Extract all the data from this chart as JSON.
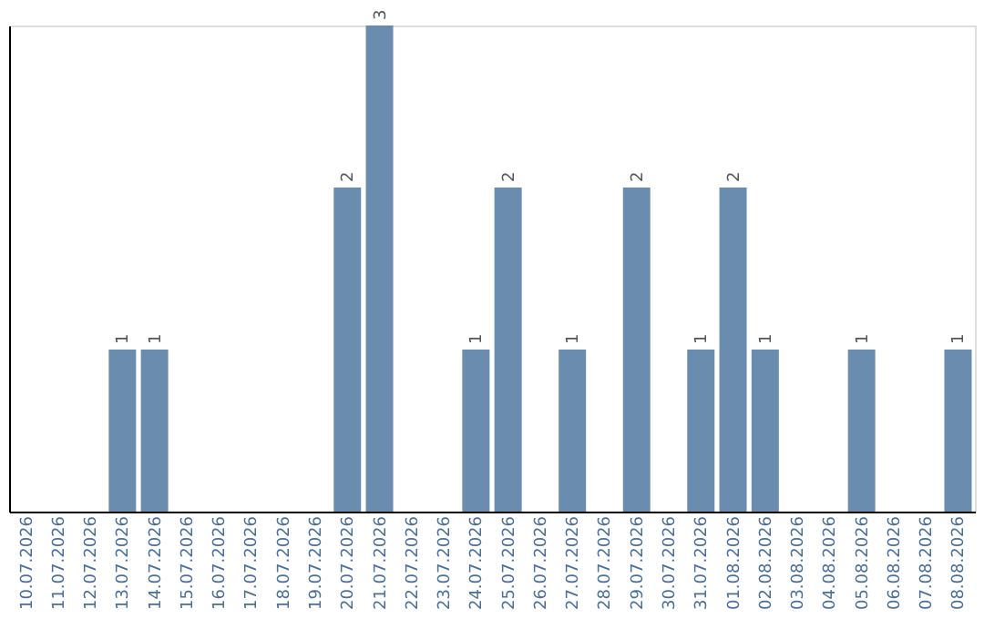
{
  "chart_data": {
    "type": "bar",
    "categories": [
      "10.07.2026",
      "11.07.2026",
      "12.07.2026",
      "13.07.2026",
      "14.07.2026",
      "15.07.2026",
      "16.07.2026",
      "17.07.2026",
      "18.07.2026",
      "19.07.2026",
      "20.07.2026",
      "21.07.2026",
      "22.07.2026",
      "23.07.2026",
      "24.07.2026",
      "25.07.2026",
      "26.07.2026",
      "27.07.2026",
      "28.07.2026",
      "29.07.2026",
      "30.07.2026",
      "31.07.2026",
      "01.08.2026",
      "02.08.2026",
      "03.08.2026",
      "04.08.2026",
      "05.08.2026",
      "06.08.2026",
      "07.08.2026",
      "08.08.2026"
    ],
    "values": [
      0,
      0,
      0,
      1,
      1,
      0,
      0,
      0,
      0,
      0,
      2,
      3,
      0,
      0,
      1,
      2,
      0,
      1,
      0,
      2,
      0,
      1,
      2,
      1,
      0,
      0,
      1,
      0,
      0,
      1
    ],
    "value_labels": [
      null,
      null,
      null,
      "1",
      "1",
      null,
      null,
      null,
      null,
      null,
      "2",
      "3",
      null,
      null,
      "1",
      "2",
      null,
      "1",
      null,
      "2",
      null,
      "1",
      "2",
      "1",
      null,
      null,
      "1",
      null,
      null,
      "1"
    ],
    "color": "#6a8cae",
    "ylim": [
      0,
      3
    ],
    "tick_labels": "x",
    "grid": false
  }
}
